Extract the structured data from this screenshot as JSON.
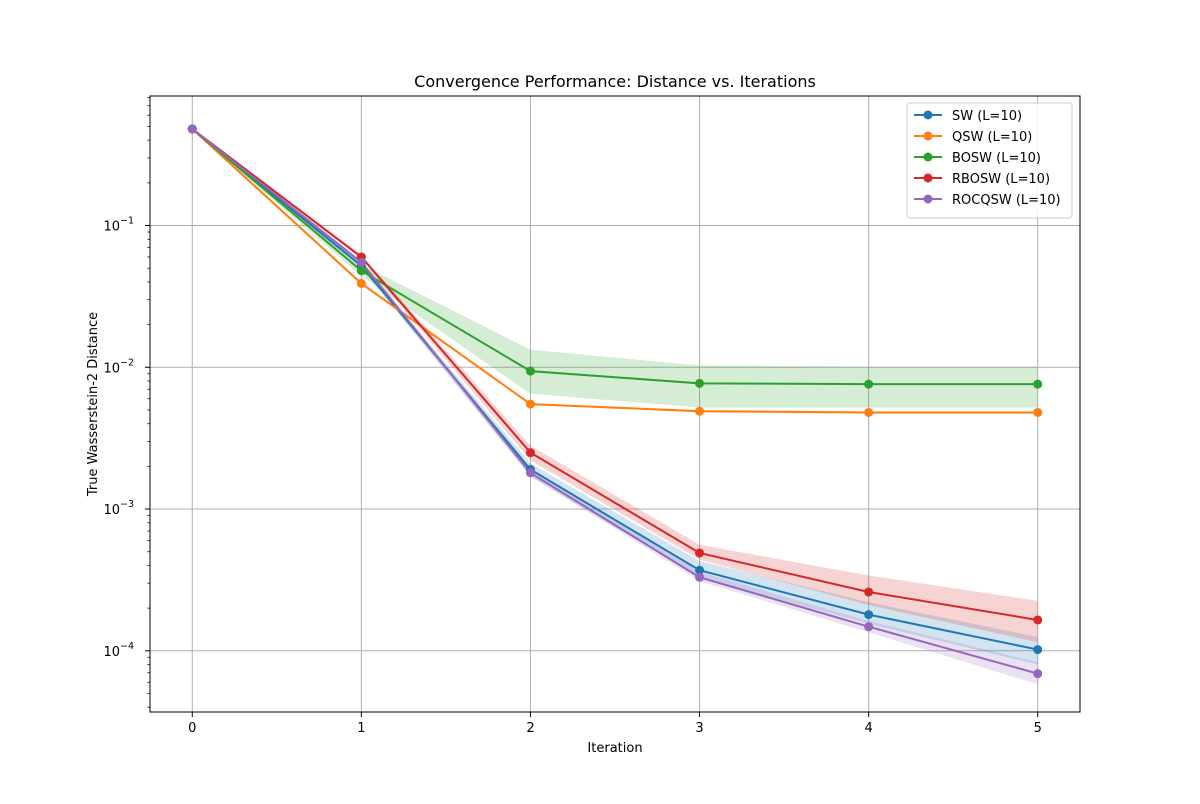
{
  "chart_data": {
    "type": "line",
    "title": "Convergence Performance: Distance vs. Iterations",
    "xlabel": "Iteration",
    "ylabel": "True Wasserstein-2 Distance",
    "x": [
      0,
      1,
      2,
      3,
      4,
      5
    ],
    "xlim": [
      -0.25,
      5.25
    ],
    "ylim": [
      3.7e-05,
      0.82
    ],
    "yscale": "log",
    "x_ticks": [
      0,
      1,
      2,
      3,
      4,
      5
    ],
    "x_tick_labels": [
      "0",
      "1",
      "2",
      "3",
      "4",
      "5"
    ],
    "y_ticks": [
      0.0001,
      0.001,
      0.01,
      0.1
    ],
    "y_tick_labels": [
      {
        "base": "10",
        "exp": "−4"
      },
      {
        "base": "10",
        "exp": "−3"
      },
      {
        "base": "10",
        "exp": "−2"
      },
      {
        "base": "10",
        "exp": "−1"
      }
    ],
    "grid": true,
    "legend_position": "top-right",
    "series": [
      {
        "name": "SW (L=10)",
        "color": "#1f77b4",
        "values": [
          0.48,
          0.052,
          0.0019,
          0.00037,
          0.00018,
          0.000102
        ],
        "band_low": [
          0.47,
          0.05,
          0.0017,
          0.00033,
          0.000155,
          8e-05
        ],
        "band_high": [
          0.49,
          0.054,
          0.0021,
          0.00043,
          0.00022,
          0.000125
        ]
      },
      {
        "name": "QSW (L=10)",
        "color": "#ff7f0e",
        "values": [
          0.48,
          0.039,
          0.0055,
          0.0049,
          0.0048,
          0.0048
        ],
        "band_low": [
          0.47,
          0.038,
          0.0054,
          0.0048,
          0.0047,
          0.0047
        ],
        "band_high": [
          0.49,
          0.04,
          0.0056,
          0.005,
          0.0049,
          0.0049
        ]
      },
      {
        "name": "BOSW (L=10)",
        "color": "#2ca02c",
        "values": [
          0.48,
          0.048,
          0.0094,
          0.0077,
          0.0076,
          0.0076
        ],
        "band_low": [
          0.47,
          0.044,
          0.0065,
          0.0052,
          0.0052,
          0.0052
        ],
        "band_high": [
          0.49,
          0.053,
          0.0133,
          0.0103,
          0.0101,
          0.0101
        ]
      },
      {
        "name": "RBOSW (L=10)",
        "color": "#d62728",
        "values": [
          0.48,
          0.06,
          0.0025,
          0.00049,
          0.00026,
          0.000165
        ],
        "band_low": [
          0.47,
          0.058,
          0.0022,
          0.00044,
          0.00021,
          0.000115
        ],
        "band_high": [
          0.49,
          0.062,
          0.0028,
          0.00056,
          0.00034,
          0.000225
        ]
      },
      {
        "name": "ROCQSW (L=10)",
        "color": "#9467bd",
        "values": [
          0.48,
          0.055,
          0.0018,
          0.00033,
          0.000148,
          6.9e-05
        ],
        "band_low": [
          0.47,
          0.053,
          0.0017,
          0.00031,
          0.000135,
          5.8e-05
        ],
        "band_high": [
          0.49,
          0.057,
          0.0019,
          0.00036,
          0.000162,
          8.3e-05
        ]
      }
    ]
  }
}
